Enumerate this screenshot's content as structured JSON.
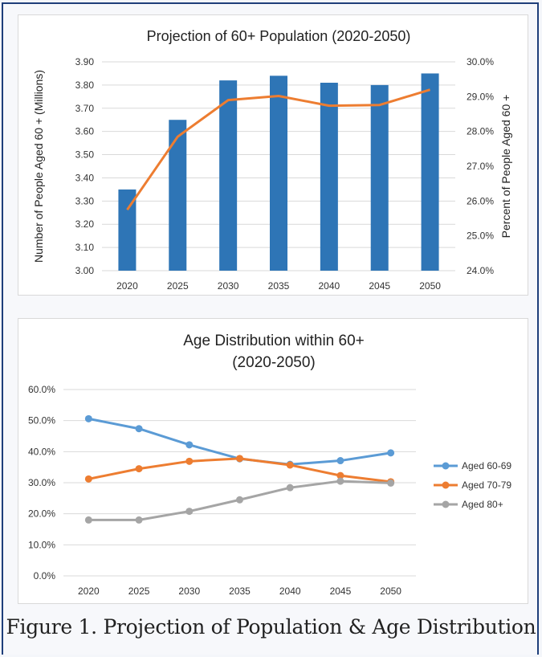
{
  "caption": "Figure 1. Projection of Population & Age Distribution",
  "chart_data": [
    {
      "type": "bar",
      "title": "Projection of 60+ Population (2020-2050)",
      "categories": [
        "2020",
        "2025",
        "2030",
        "2035",
        "2040",
        "2045",
        "2050"
      ],
      "ylabel": "Number of People Aged 60 + (Millions)",
      "ylabel_right": "Percent of People Aged 60 +",
      "ylim": [
        3.0,
        3.9
      ],
      "yticks": [
        "3.00",
        "3.10",
        "3.20",
        "3.30",
        "3.40",
        "3.50",
        "3.60",
        "3.70",
        "3.80",
        "3.90"
      ],
      "ylim_right": [
        24.0,
        30.0
      ],
      "yticks_right": [
        "24.0%",
        "25.0%",
        "26.0%",
        "27.0%",
        "28.0%",
        "29.0%",
        "30.0%"
      ],
      "bar_color": "#2e75b6",
      "line_color": "#ed7d31",
      "series": [
        {
          "kind": "bar",
          "axis": "left",
          "values": [
            3.35,
            3.65,
            3.82,
            3.84,
            3.81,
            3.8,
            3.85
          ]
        },
        {
          "kind": "line",
          "axis": "right",
          "values": [
            25.75,
            27.85,
            28.9,
            29.02,
            28.74,
            28.76,
            29.2
          ]
        }
      ],
      "grid": true
    },
    {
      "type": "line",
      "title": [
        "Age Distribution within 60+",
        "(2020-2050)"
      ],
      "categories": [
        "2020",
        "2025",
        "2030",
        "2035",
        "2040",
        "2045",
        "2050"
      ],
      "ylim": [
        0,
        60
      ],
      "yticks": [
        "0.0%",
        "10.0%",
        "20.0%",
        "30.0%",
        "40.0%",
        "50.0%",
        "60.0%"
      ],
      "legend": "right",
      "grid": true,
      "series": [
        {
          "name": "Aged 60-69",
          "color": "#5b9bd5",
          "values": [
            50.6,
            47.4,
            42.2,
            37.7,
            35.9,
            37.1,
            39.6
          ]
        },
        {
          "name": "Aged 70-79",
          "color": "#ed7d31",
          "values": [
            31.2,
            34.5,
            36.9,
            37.8,
            35.7,
            32.3,
            30.3
          ]
        },
        {
          "name": "Aged 80+",
          "color": "#a5a5a5",
          "values": [
            18.0,
            18.0,
            20.8,
            24.5,
            28.4,
            30.5,
            29.9
          ]
        }
      ]
    }
  ]
}
